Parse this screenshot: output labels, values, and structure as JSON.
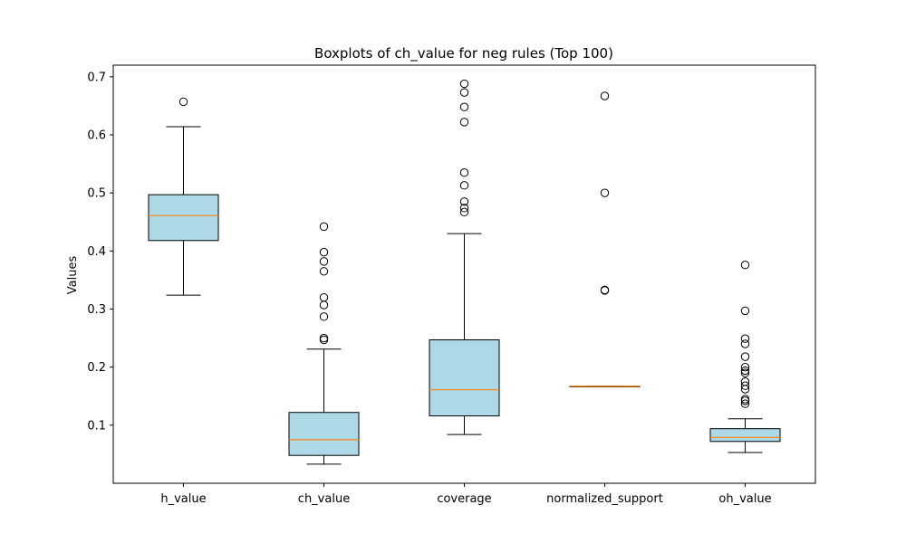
{
  "chart_data": {
    "type": "boxplot",
    "title": "Boxplots of ch_value for neg rules (Top 100)",
    "xlabel": "",
    "ylabel": "Values",
    "ylim": [
      0.0,
      0.72
    ],
    "yticks": [
      0.1,
      0.2,
      0.3,
      0.4,
      0.5,
      0.6,
      0.7
    ],
    "ytick_labels": [
      "0.1",
      "0.2",
      "0.3",
      "0.4",
      "0.5",
      "0.6",
      "0.7"
    ],
    "grid": false,
    "categories": [
      "h_value",
      "ch_value",
      "coverage",
      "normalized_support",
      "oh_value"
    ],
    "box_fill": "#add8e6",
    "median_color": "#ff7f0e",
    "series": [
      {
        "q1": 0.418,
        "median": 0.461,
        "q3": 0.497,
        "whisker_low": 0.324,
        "whisker_high": 0.614,
        "outliers": [
          0.657
        ]
      },
      {
        "q1": 0.048,
        "median": 0.075,
        "q3": 0.122,
        "whisker_low": 0.033,
        "whisker_high": 0.231,
        "outliers": [
          0.247,
          0.25,
          0.287,
          0.307,
          0.32,
          0.365,
          0.382,
          0.398,
          0.442
        ]
      },
      {
        "q1": 0.116,
        "median": 0.161,
        "q3": 0.247,
        "whisker_low": 0.084,
        "whisker_high": 0.43,
        "outliers": [
          0.467,
          0.474,
          0.485,
          0.513,
          0.535,
          0.622,
          0.648,
          0.673,
          0.688
        ]
      },
      {
        "q1": 0.167,
        "median": 0.167,
        "q3": 0.167,
        "whisker_low": 0.167,
        "whisker_high": 0.167,
        "outliers": [
          0.332,
          0.333,
          0.5,
          0.667
        ]
      },
      {
        "q1": 0.072,
        "median": 0.079,
        "q3": 0.094,
        "whisker_low": 0.053,
        "whisker_high": 0.111,
        "outliers": [
          0.137,
          0.142,
          0.145,
          0.162,
          0.168,
          0.175,
          0.19,
          0.194,
          0.2,
          0.218,
          0.24,
          0.249,
          0.297,
          0.376
        ]
      }
    ]
  }
}
